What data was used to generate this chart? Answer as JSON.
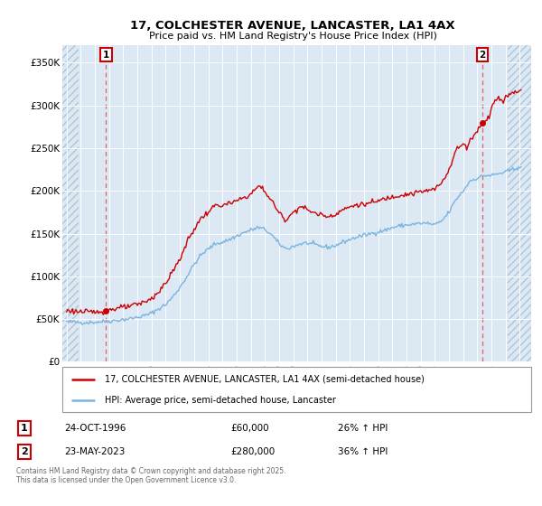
{
  "title": "17, COLCHESTER AVENUE, LANCASTER, LA1 4AX",
  "subtitle": "Price paid vs. HM Land Registry's House Price Index (HPI)",
  "legend_line1": "17, COLCHESTER AVENUE, LANCASTER, LA1 4AX (semi-detached house)",
  "legend_line2": "HPI: Average price, semi-detached house, Lancaster",
  "transaction1_date": "24-OCT-1996",
  "transaction1_price": 60000,
  "transaction1_label": "26% ↑ HPI",
  "transaction2_date": "23-MAY-2023",
  "transaction2_price": 280000,
  "transaction2_label": "36% ↑ HPI",
  "footer": "Contains HM Land Registry data © Crown copyright and database right 2025.\nThis data is licensed under the Open Government Licence v3.0.",
  "hpi_color": "#7ab4e0",
  "price_color": "#cc0000",
  "marker_color": "#cc0000",
  "bg_color": "#dce9f5",
  "hatch_color": "#c8d8e8",
  "grid_color": "#ffffff",
  "ylim": [
    0,
    370000
  ],
  "xlim_start": 1993.7,
  "xlim_end": 2026.8,
  "hatch_left_end": 1994.83,
  "hatch_right_start": 2025.17,
  "yticks": [
    0,
    50000,
    100000,
    150000,
    200000,
    250000,
    300000,
    350000
  ],
  "ytick_labels": [
    "£0",
    "£50K",
    "£100K",
    "£150K",
    "£200K",
    "£250K",
    "£300K",
    "£350K"
  ],
  "xticks": [
    1994,
    1995,
    1996,
    1997,
    1998,
    1999,
    2000,
    2001,
    2002,
    2003,
    2004,
    2005,
    2006,
    2007,
    2008,
    2009,
    2010,
    2011,
    2012,
    2013,
    2014,
    2015,
    2016,
    2017,
    2018,
    2019,
    2020,
    2021,
    2022,
    2023,
    2024,
    2025,
    2026
  ],
  "t1_x": 1996.79,
  "t1_y": 60000,
  "t2_x": 2023.37,
  "t2_y": 280000
}
